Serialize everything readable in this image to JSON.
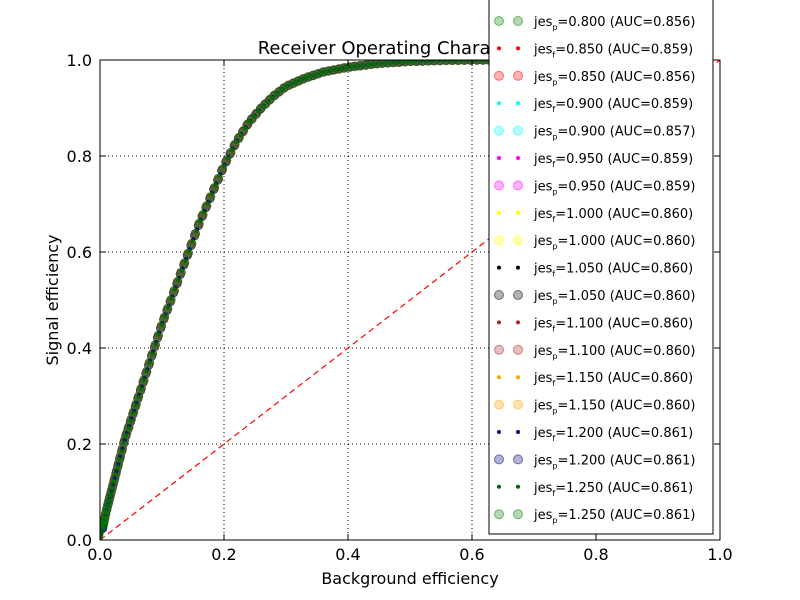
{
  "chart_data": {
    "type": "line",
    "title": "Receiver Operating Characteristic",
    "xlabel": "Background efficiency",
    "ylabel": "Signal efficiency",
    "xlim": [
      0,
      1
    ],
    "ylim": [
      0,
      1
    ],
    "x_ticks": [
      "0.0",
      "0.2",
      "0.4",
      "0.6",
      "0.8",
      "1.0"
    ],
    "y_ticks": [
      "0.0",
      "0.2",
      "0.4",
      "0.6",
      "0.8",
      "1.0"
    ],
    "grid": true,
    "legend_position": "top-right",
    "reference_line": {
      "style": "dashed",
      "color": "#ff0000",
      "x": [
        0,
        1
      ],
      "y": [
        0,
        1
      ]
    },
    "roc_x": [
      0,
      0.01,
      0.02,
      0.03,
      0.04,
      0.05,
      0.06,
      0.07,
      0.08,
      0.09,
      0.1,
      0.12,
      0.14,
      0.16,
      0.18,
      0.2,
      0.22,
      0.24,
      0.26,
      0.28,
      0.3,
      0.33,
      0.36,
      0.4,
      0.45,
      0.5,
      0.55,
      0.6,
      0.65,
      0.7,
      0.75,
      0.8,
      0.85,
      0.9,
      0.95,
      1.0
    ],
    "roc_y": [
      0,
      0.06,
      0.11,
      0.16,
      0.21,
      0.25,
      0.29,
      0.33,
      0.37,
      0.41,
      0.45,
      0.52,
      0.59,
      0.66,
      0.72,
      0.78,
      0.83,
      0.87,
      0.9,
      0.925,
      0.945,
      0.962,
      0.975,
      0.985,
      0.993,
      0.997,
      0.999,
      1.0,
      1.0,
      1.0,
      1.0,
      1.0,
      1.0,
      1.0,
      1.0,
      1.0
    ],
    "series": [
      {
        "label_prefix": "jes",
        "label_sub": "p",
        "label_value": "=0.800 (AUC=0.856)",
        "marker": "large",
        "color": "#008000"
      },
      {
        "label_prefix": "jes",
        "label_sub": "f",
        "label_value": "=0.850 (AUC=0.859)",
        "marker": "small",
        "color": "#ff0000"
      },
      {
        "label_prefix": "jes",
        "label_sub": "p",
        "label_value": "=0.850 (AUC=0.856)",
        "marker": "large",
        "color": "#ff0000"
      },
      {
        "label_prefix": "jes",
        "label_sub": "f",
        "label_value": "=0.900 (AUC=0.859)",
        "marker": "small",
        "color": "#00ffff"
      },
      {
        "label_prefix": "jes",
        "label_sub": "p",
        "label_value": "=0.900 (AUC=0.857)",
        "marker": "large",
        "color": "#00ffff"
      },
      {
        "label_prefix": "jes",
        "label_sub": "f",
        "label_value": "=0.950 (AUC=0.859)",
        "marker": "small",
        "color": "#ff00ff"
      },
      {
        "label_prefix": "jes",
        "label_sub": "p",
        "label_value": "=0.950 (AUC=0.859)",
        "marker": "large",
        "color": "#ff00ff"
      },
      {
        "label_prefix": "jes",
        "label_sub": "f",
        "label_value": "=1.000 (AUC=0.860)",
        "marker": "small",
        "color": "#ffff00"
      },
      {
        "label_prefix": "jes",
        "label_sub": "p",
        "label_value": "=1.000 (AUC=0.860)",
        "marker": "large",
        "color": "#ffff00"
      },
      {
        "label_prefix": "jes",
        "label_sub": "f",
        "label_value": "=1.050 (AUC=0.860)",
        "marker": "small",
        "color": "#000000"
      },
      {
        "label_prefix": "jes",
        "label_sub": "p",
        "label_value": "=1.050 (AUC=0.860)",
        "marker": "large",
        "color": "#000000"
      },
      {
        "label_prefix": "jes",
        "label_sub": "f",
        "label_value": "=1.100 (AUC=0.860)",
        "marker": "small",
        "color": "#a52a2a"
      },
      {
        "label_prefix": "jes",
        "label_sub": "p",
        "label_value": "=1.100 (AUC=0.860)",
        "marker": "large",
        "color": "#a52a2a"
      },
      {
        "label_prefix": "jes",
        "label_sub": "f",
        "label_value": "=1.150 (AUC=0.860)",
        "marker": "small",
        "color": "#ffa500"
      },
      {
        "label_prefix": "jes",
        "label_sub": "p",
        "label_value": "=1.150 (AUC=0.860)",
        "marker": "large",
        "color": "#ffa500"
      },
      {
        "label_prefix": "jes",
        "label_sub": "f",
        "label_value": "=1.200 (AUC=0.861)",
        "marker": "small",
        "color": "#000080"
      },
      {
        "label_prefix": "jes",
        "label_sub": "p",
        "label_value": "=1.200 (AUC=0.861)",
        "marker": "large",
        "color": "#000080"
      },
      {
        "label_prefix": "jes",
        "label_sub": "f",
        "label_value": "=1.250 (AUC=0.861)",
        "marker": "small",
        "color": "#006400"
      },
      {
        "label_prefix": "jes",
        "label_sub": "p",
        "label_value": "=1.250 (AUC=0.861)",
        "marker": "large",
        "color": "#008000"
      }
    ]
  }
}
